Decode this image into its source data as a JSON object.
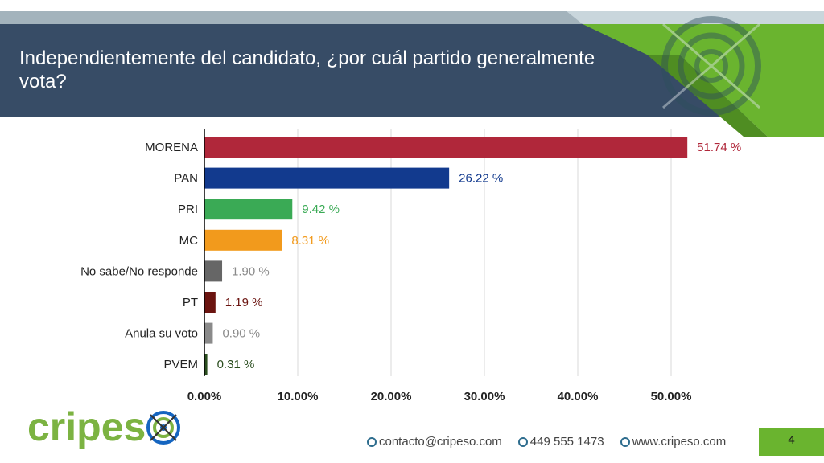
{
  "header": {
    "title": "Independientemente del candidato, ¿por cuál partido generalmente vota?"
  },
  "chart_data": {
    "type": "bar",
    "orientation": "horizontal",
    "title": "",
    "xlabel": "",
    "ylabel": "",
    "xlim": [
      0,
      55
    ],
    "grid": true,
    "categories": [
      "MORENA",
      "PAN",
      "PRI",
      "MC",
      "No sabe/No responde",
      "PT",
      "Anula su voto",
      "PVEM"
    ],
    "values": [
      51.74,
      26.22,
      9.42,
      8.31,
      1.9,
      1.19,
      0.9,
      0.31
    ],
    "value_labels": [
      "51.74 %",
      "26.22 %",
      "9.42 %",
      "8.31 %",
      "1.90 %",
      "1.19 %",
      "0.90 %",
      "0.31 %"
    ],
    "colors": [
      "#b0273a",
      "#123a8e",
      "#3aaa55",
      "#f29a1c",
      "#666666",
      "#6b1410",
      "#8a8a8a",
      "#2a4d1e"
    ],
    "label_colors": [
      "#b0273a",
      "#123a8e",
      "#3aaa55",
      "#f29a1c",
      "#8a8a8a",
      "#6b1410",
      "#8a8a8a",
      "#2a4d1e"
    ],
    "x_ticks": [
      0,
      10,
      20,
      30,
      40,
      50
    ],
    "x_tick_labels": [
      "0.00%",
      "10.00%",
      "20.00%",
      "30.00%",
      "40.00%",
      "50.00%"
    ]
  },
  "logo": {
    "part1": "cripes",
    "part2": ""
  },
  "footer": {
    "email": "contacto@cripeso.com",
    "phone": "449 555 1473",
    "web": "www.cripeso.com",
    "page": "4"
  },
  "colors": {
    "header": "#374c66",
    "accent_green": "#6ab42f",
    "strip_grey": "#a3b3bc"
  }
}
